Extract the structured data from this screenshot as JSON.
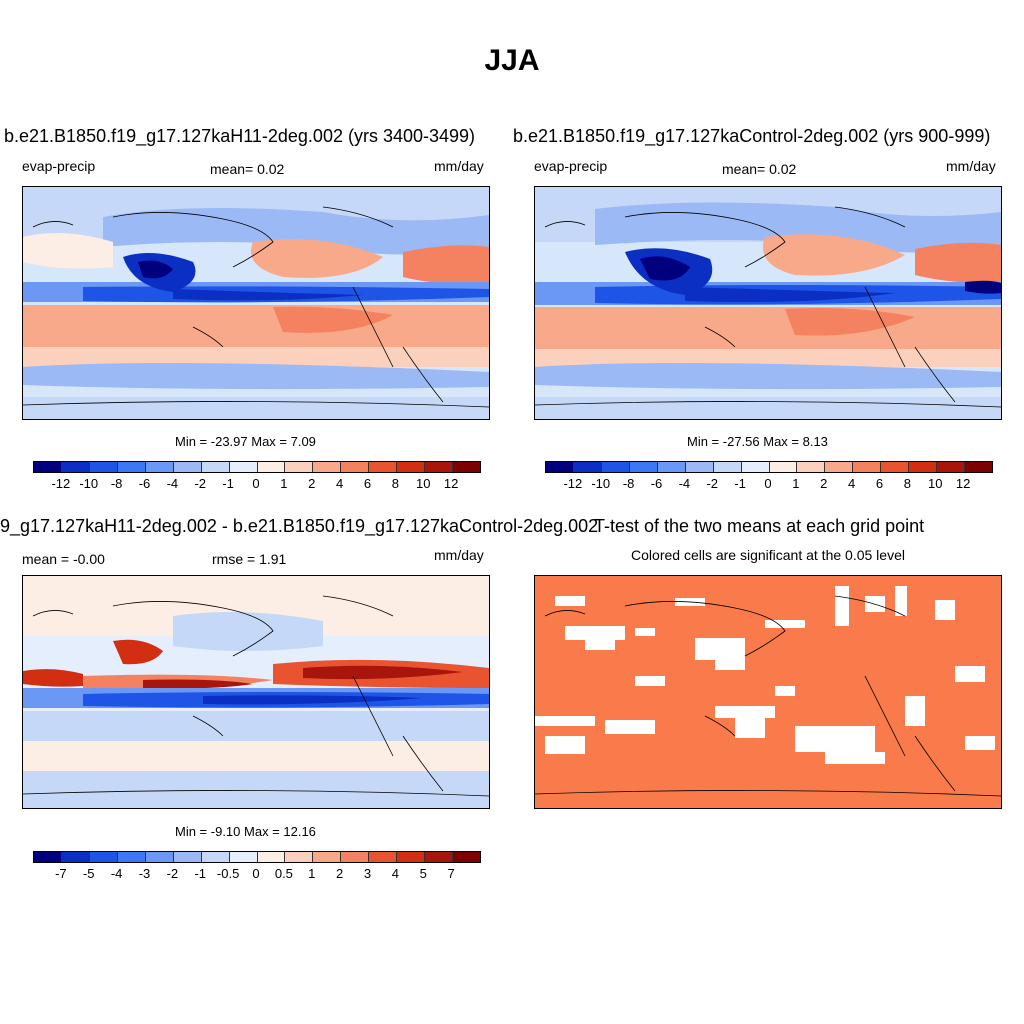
{
  "main_title": "JJA",
  "panels": [
    {
      "title": "b.e21.B1850.f19_g17.127kaH11-2deg.002 (yrs 3400-3499)",
      "left_label": "evap-precip",
      "center_label": "mean=   0.02",
      "right_label": "mm/day",
      "minmax": "Min = -23.97 Max =   7.09"
    },
    {
      "title": "b.e21.B1850.f19_g17.127kaControl-2deg.002 (yrs 900-999)",
      "left_label": "evap-precip",
      "center_label": "mean=   0.02",
      "right_label": "mm/day",
      "minmax": "Min = -27.56 Max =   8.13"
    },
    {
      "title": "9_g17.127kaH11-2deg.002 - b.e21.B1850.f19_g17.127kaControl-2deg.002",
      "left_label": "mean =  -0.00",
      "center_label": "rmse =   1.91",
      "right_label": "mm/day",
      "minmax": "Min =  -9.10 Max =  12.16"
    },
    {
      "title": "T-test of the two means at each grid point",
      "subtitle": "Colored cells are significant at the 0.05 level",
      "significant_color": "#f97a4a"
    }
  ],
  "colorbar_abs": {
    "labels": [
      "-12",
      "-10",
      "-8",
      "-6",
      "-4",
      "-2",
      "-1",
      "0",
      "1",
      "2",
      "4",
      "6",
      "8",
      "10",
      "12"
    ],
    "colors": [
      "#00007f",
      "#0a2fc2",
      "#1e55e6",
      "#3c78f5",
      "#6b98f5",
      "#9bb9f5",
      "#c6d8f7",
      "#e4eefc",
      "#fdeee5",
      "#fbd0bc",
      "#f8a98a",
      "#f48160",
      "#ea5330",
      "#d12e12",
      "#a7150c",
      "#7f0000"
    ]
  },
  "colorbar_diff": {
    "labels": [
      "-7",
      "-5",
      "-4",
      "-3",
      "-2",
      "-1",
      "-0.5",
      "0",
      "0.5",
      "1",
      "2",
      "3",
      "4",
      "5",
      "7"
    ],
    "colors": [
      "#00007f",
      "#0a2fc2",
      "#1e55e6",
      "#3c78f5",
      "#6b98f5",
      "#9bb9f5",
      "#c6d8f7",
      "#e4eefc",
      "#fdeee5",
      "#fbd0bc",
      "#f8a98a",
      "#f48160",
      "#ea5330",
      "#d12e12",
      "#a7150c",
      "#7f0000"
    ]
  }
}
